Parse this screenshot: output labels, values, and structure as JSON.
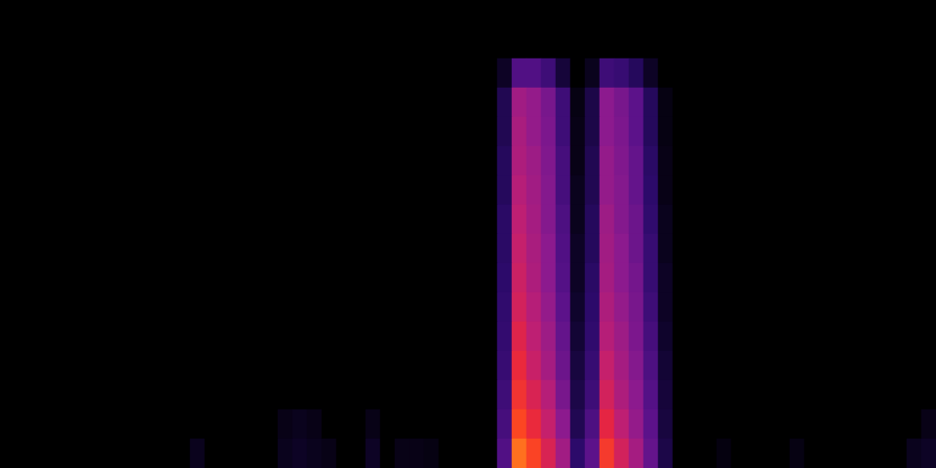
{
  "chart_data": {
    "type": "heatmap",
    "grid": false,
    "tick_labels": false,
    "clim": [
      0,
      100
    ],
    "cells": [
      [
        0,
        0,
        0,
        0,
        0,
        0,
        0,
        0,
        0,
        0,
        0,
        0,
        0,
        0,
        0,
        0,
        0,
        0,
        0,
        0,
        0,
        0,
        0,
        0,
        0,
        0,
        0,
        0,
        0,
        0,
        0,
        0,
        0,
        0,
        0,
        0,
        0,
        0,
        0,
        0,
        0,
        0,
        0,
        0,
        0,
        0,
        0,
        0,
        0,
        0,
        0,
        0,
        0,
        0,
        0,
        0,
        0,
        0,
        0,
        0,
        0,
        0,
        0,
        0
      ],
      [
        0,
        0,
        0,
        0,
        0,
        0,
        0,
        0,
        0,
        0,
        0,
        0,
        0,
        0,
        0,
        0,
        0,
        0,
        0,
        0,
        0,
        0,
        0,
        0,
        0,
        0,
        0,
        0,
        0,
        0,
        0,
        0,
        0,
        0,
        0,
        0,
        0,
        0,
        0,
        0,
        0,
        0,
        0,
        0,
        0,
        0,
        0,
        0,
        0,
        0,
        0,
        0,
        0,
        0,
        0,
        0,
        0,
        0,
        0,
        0,
        0,
        0,
        0,
        0
      ],
      [
        0,
        0,
        0,
        0,
        0,
        0,
        0,
        0,
        0,
        0,
        0,
        0,
        0,
        0,
        0,
        0,
        0,
        0,
        0,
        0,
        0,
        0,
        0,
        0,
        0,
        0,
        0,
        0,
        0,
        0,
        0,
        0,
        0,
        0,
        10,
        35,
        35,
        30,
        15,
        0,
        8,
        30,
        28,
        22,
        10,
        0,
        0,
        0,
        0,
        0,
        0,
        0,
        0,
        0,
        0,
        0,
        0,
        0,
        0,
        0,
        0,
        0,
        0,
        0
      ],
      [
        0,
        0,
        0,
        0,
        0,
        0,
        0,
        0,
        0,
        0,
        0,
        0,
        0,
        0,
        0,
        0,
        0,
        0,
        0,
        0,
        0,
        0,
        0,
        0,
        0,
        0,
        0,
        0,
        0,
        0,
        0,
        0,
        0,
        0,
        20,
        55,
        52,
        45,
        30,
        5,
        18,
        50,
        45,
        38,
        22,
        5,
        0,
        0,
        0,
        0,
        0,
        0,
        0,
        0,
        0,
        0,
        0,
        0,
        0,
        0,
        0,
        0,
        0,
        0
      ],
      [
        0,
        0,
        0,
        0,
        0,
        0,
        0,
        0,
        0,
        0,
        0,
        0,
        0,
        0,
        0,
        0,
        0,
        0,
        0,
        0,
        0,
        0,
        0,
        0,
        0,
        0,
        0,
        0,
        0,
        0,
        0,
        0,
        0,
        0,
        20,
        57,
        52,
        46,
        30,
        6,
        18,
        50,
        46,
        38,
        22,
        5,
        0,
        0,
        0,
        0,
        0,
        0,
        0,
        0,
        0,
        0,
        0,
        0,
        0,
        0,
        0,
        0,
        0,
        0
      ],
      [
        0,
        0,
        0,
        0,
        0,
        0,
        0,
        0,
        0,
        0,
        0,
        0,
        0,
        0,
        0,
        0,
        0,
        0,
        0,
        0,
        0,
        0,
        0,
        0,
        0,
        0,
        0,
        0,
        0,
        0,
        0,
        0,
        0,
        0,
        22,
        58,
        54,
        47,
        32,
        6,
        20,
        52,
        47,
        40,
        24,
        6,
        0,
        0,
        0,
        0,
        0,
        0,
        0,
        0,
        0,
        0,
        0,
        0,
        0,
        0,
        0,
        0,
        0,
        0
      ],
      [
        0,
        0,
        0,
        0,
        0,
        0,
        0,
        0,
        0,
        0,
        0,
        0,
        0,
        0,
        0,
        0,
        0,
        0,
        0,
        0,
        0,
        0,
        0,
        0,
        0,
        0,
        0,
        0,
        0,
        0,
        0,
        0,
        0,
        0,
        22,
        60,
        55,
        48,
        32,
        8,
        20,
        52,
        48,
        40,
        25,
        6,
        0,
        0,
        0,
        0,
        0,
        0,
        0,
        0,
        0,
        0,
        0,
        0,
        0,
        0,
        0,
        0,
        0,
        0
      ],
      [
        0,
        0,
        0,
        0,
        0,
        0,
        0,
        0,
        0,
        0,
        0,
        0,
        0,
        0,
        0,
        0,
        0,
        0,
        0,
        0,
        0,
        0,
        0,
        0,
        0,
        0,
        0,
        0,
        0,
        0,
        0,
        0,
        0,
        0,
        24,
        62,
        56,
        48,
        34,
        8,
        22,
        54,
        48,
        42,
        26,
        8,
        0,
        0,
        0,
        0,
        0,
        0,
        0,
        0,
        0,
        0,
        0,
        0,
        0,
        0,
        0,
        0,
        0,
        0
      ],
      [
        0,
        0,
        0,
        0,
        0,
        0,
        0,
        0,
        0,
        0,
        0,
        0,
        0,
        0,
        0,
        0,
        0,
        0,
        0,
        0,
        0,
        0,
        0,
        0,
        0,
        0,
        0,
        0,
        0,
        0,
        0,
        0,
        0,
        0,
        24,
        64,
        57,
        50,
        35,
        10,
        22,
        55,
        50,
        42,
        28,
        8,
        0,
        0,
        0,
        0,
        0,
        0,
        0,
        0,
        0,
        0,
        0,
        0,
        0,
        0,
        0,
        0,
        0,
        0
      ],
      [
        0,
        0,
        0,
        0,
        0,
        0,
        0,
        0,
        0,
        0,
        0,
        0,
        0,
        0,
        0,
        0,
        0,
        0,
        0,
        0,
        0,
        0,
        0,
        0,
        0,
        0,
        0,
        0,
        0,
        0,
        0,
        0,
        0,
        0,
        25,
        66,
        58,
        50,
        36,
        10,
        24,
        56,
        50,
        44,
        28,
        10,
        0,
        0,
        0,
        0,
        0,
        0,
        0,
        0,
        0,
        0,
        0,
        0,
        0,
        0,
        0,
        0,
        0,
        0
      ],
      [
        0,
        0,
        0,
        0,
        0,
        0,
        0,
        0,
        0,
        0,
        0,
        0,
        0,
        0,
        0,
        0,
        0,
        0,
        0,
        0,
        0,
        0,
        0,
        0,
        0,
        0,
        0,
        0,
        0,
        0,
        0,
        0,
        0,
        0,
        26,
        68,
        60,
        52,
        38,
        12,
        25,
        58,
        52,
        45,
        30,
        10,
        0,
        0,
        0,
        0,
        0,
        0,
        0,
        0,
        0,
        0,
        0,
        0,
        0,
        0,
        0,
        0,
        0,
        0
      ],
      [
        0,
        0,
        0,
        0,
        0,
        0,
        0,
        0,
        0,
        0,
        0,
        0,
        0,
        0,
        0,
        0,
        0,
        0,
        0,
        0,
        0,
        0,
        0,
        0,
        0,
        0,
        0,
        0,
        0,
        0,
        0,
        0,
        0,
        0,
        27,
        72,
        62,
        54,
        40,
        14,
        26,
        60,
        54,
        46,
        32,
        12,
        0,
        0,
        0,
        0,
        0,
        0,
        0,
        0,
        0,
        0,
        0,
        0,
        0,
        0,
        0,
        0,
        0,
        0
      ],
      [
        0,
        0,
        0,
        0,
        0,
        0,
        0,
        0,
        0,
        0,
        0,
        0,
        0,
        0,
        0,
        0,
        0,
        0,
        0,
        0,
        0,
        0,
        0,
        0,
        0,
        0,
        0,
        0,
        0,
        0,
        0,
        0,
        0,
        0,
        28,
        76,
        65,
        56,
        42,
        16,
        28,
        64,
        56,
        48,
        34,
        14,
        0,
        0,
        0,
        0,
        0,
        0,
        0,
        0,
        0,
        0,
        0,
        0,
        0,
        0,
        0,
        0,
        0,
        0
      ],
      [
        0,
        0,
        0,
        0,
        0,
        0,
        0,
        0,
        0,
        0,
        0,
        0,
        0,
        0,
        0,
        0,
        0,
        0,
        0,
        0,
        0,
        0,
        0,
        0,
        0,
        0,
        0,
        0,
        0,
        0,
        0,
        0,
        0,
        0,
        30,
        80,
        70,
        60,
        45,
        18,
        30,
        68,
        58,
        50,
        36,
        15,
        0,
        0,
        0,
        0,
        0,
        0,
        0,
        0,
        0,
        0,
        0,
        0,
        0,
        0,
        0,
        0,
        0,
        0
      ],
      [
        0,
        0,
        0,
        0,
        0,
        0,
        0,
        0,
        0,
        0,
        0,
        0,
        0,
        0,
        0,
        0,
        0,
        0,
        0,
        6,
        8,
        6,
        0,
        0,
        0,
        6,
        0,
        0,
        0,
        0,
        0,
        0,
        0,
        0,
        32,
        86,
        76,
        64,
        50,
        20,
        34,
        74,
        62,
        52,
        38,
        16,
        0,
        0,
        0,
        0,
        0,
        0,
        0,
        0,
        0,
        0,
        0,
        0,
        0,
        0,
        0,
        0,
        0,
        6
      ],
      [
        0,
        0,
        0,
        0,
        0,
        0,
        0,
        0,
        0,
        0,
        0,
        0,
        0,
        8,
        0,
        0,
        0,
        0,
        0,
        8,
        10,
        8,
        6,
        0,
        0,
        10,
        0,
        6,
        6,
        5,
        0,
        0,
        0,
        0,
        35,
        95,
        85,
        70,
        55,
        25,
        38,
        82,
        68,
        56,
        40,
        18,
        0,
        0,
        0,
        4,
        0,
        0,
        0,
        0,
        5,
        0,
        0,
        0,
        0,
        0,
        0,
        0,
        8,
        10
      ]
    ]
  }
}
